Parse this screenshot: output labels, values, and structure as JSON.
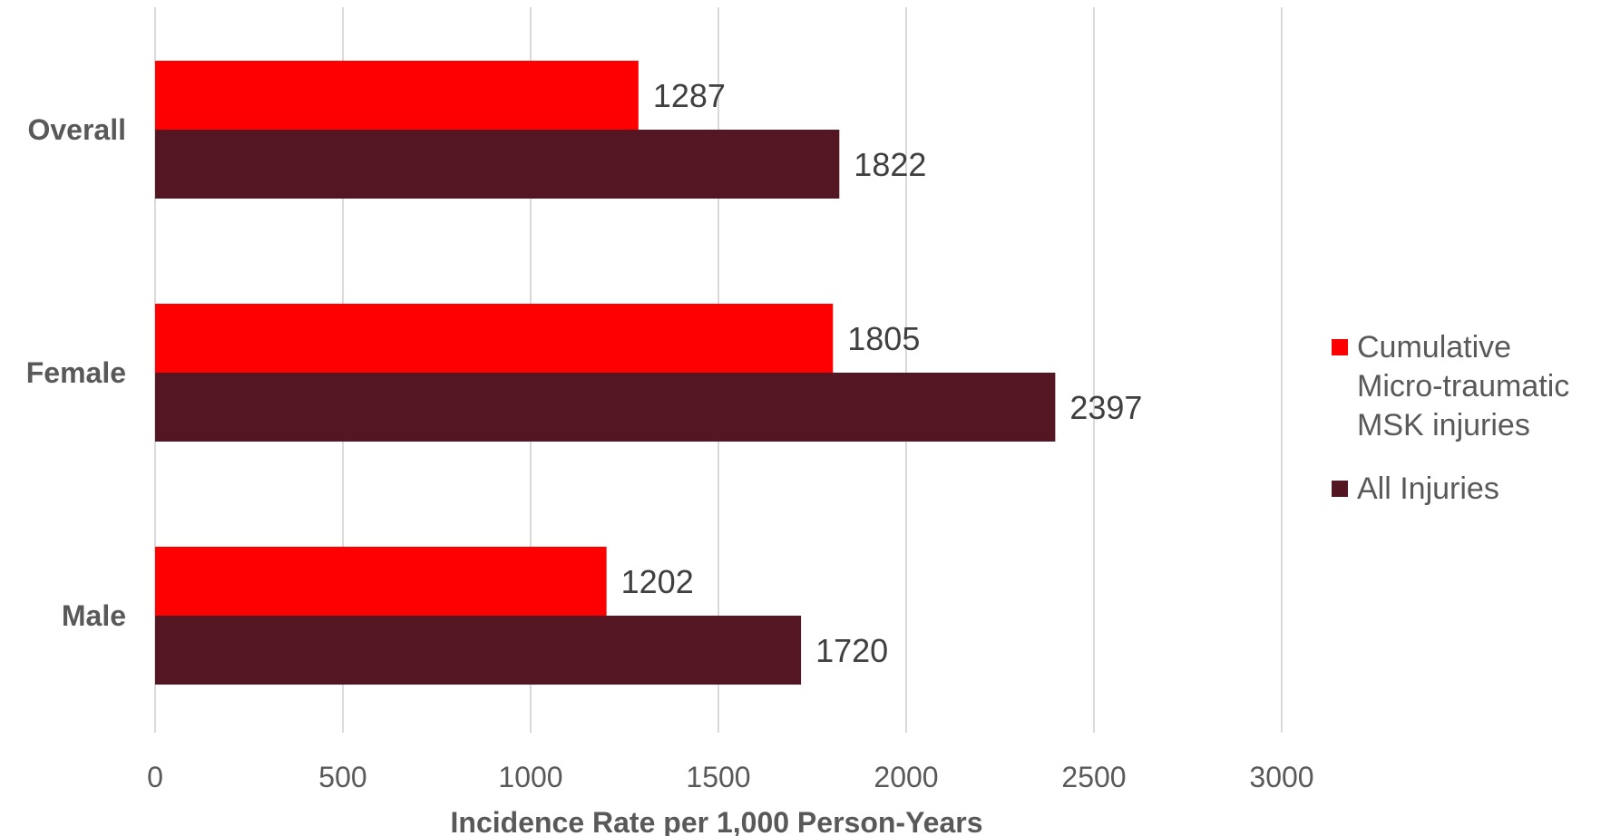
{
  "chart_data": {
    "type": "bar",
    "orientation": "horizontal",
    "categories": [
      "Overall",
      "Female",
      "Male"
    ],
    "series": [
      {
        "name": "Cumulative Micro-traumatic MSK injuries",
        "name_lines": [
          "Cumulative",
          "Micro-traumatic",
          "MSK injuries"
        ],
        "color": "#ff0000",
        "values": [
          1287,
          1805,
          1202
        ]
      },
      {
        "name": "All Injuries",
        "name_lines": [
          "All Injuries"
        ],
        "color": "#551624",
        "values": [
          1822,
          2397,
          1720
        ]
      }
    ],
    "xlabel": "Incidence Rate per 1,000 Person-Years",
    "ylabel": "",
    "xlim": [
      0,
      3000
    ],
    "xticks": [
      "0",
      "500",
      "1000",
      "1500",
      "2000",
      "2500",
      "3000"
    ],
    "xtick_values": [
      0,
      500,
      1000,
      1500,
      2000,
      2500,
      3000
    ],
    "grid": "vertical",
    "legend_position": "right",
    "data_labels": true
  }
}
